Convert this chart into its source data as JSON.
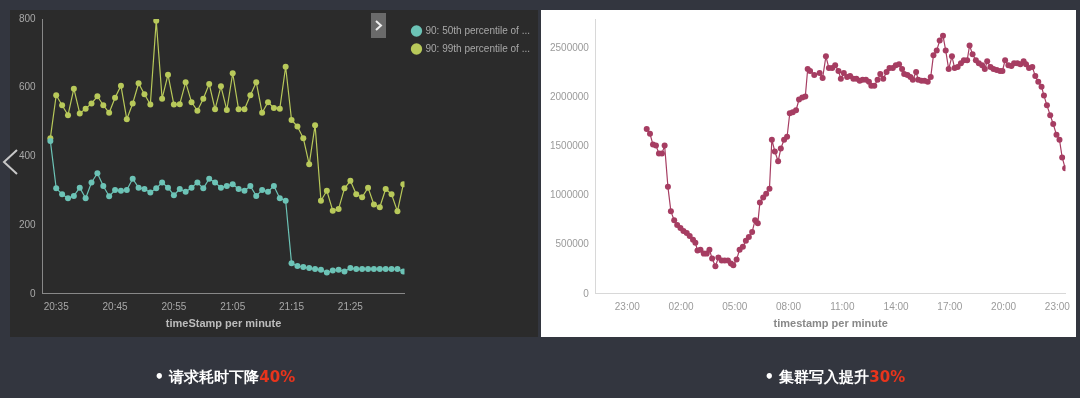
{
  "chart_data": [
    {
      "type": "line",
      "xlabel": "timeStamp per minute",
      "xlim": [
        20.545,
        21.57
      ],
      "xticks": [
        {
          "value": 20.5833,
          "label": "20:35"
        },
        {
          "value": 20.75,
          "label": "20:45"
        },
        {
          "value": 20.9167,
          "label": "20:55"
        },
        {
          "value": 21.0833,
          "label": "21:05"
        },
        {
          "value": 21.25,
          "label": "21:15"
        },
        {
          "value": 21.4167,
          "label": "21:25"
        }
      ],
      "ylim": [
        0,
        800
      ],
      "yticks": [
        0,
        200,
        400,
        600,
        800
      ],
      "grid": false,
      "legend": "top right",
      "marker": "circle",
      "line_style": "solid",
      "annotations": [
        "• 请求耗时下降40%"
      ],
      "x": [
        20.5667,
        20.5833,
        20.6,
        20.6167,
        20.6333,
        20.65,
        20.6667,
        20.6833,
        20.7,
        20.7167,
        20.7333,
        20.75,
        20.7667,
        20.7833,
        20.8,
        20.8167,
        20.8333,
        20.85,
        20.8667,
        20.8833,
        20.9,
        20.9167,
        20.9333,
        20.95,
        20.9667,
        20.9833,
        21.0,
        21.0167,
        21.0333,
        21.05,
        21.0667,
        21.0833,
        21.1,
        21.1167,
        21.1333,
        21.15,
        21.1667,
        21.1833,
        21.2,
        21.2167,
        21.2333,
        21.25,
        21.2667,
        21.2833,
        21.3,
        21.3167,
        21.3333,
        21.35,
        21.3667,
        21.3833,
        21.4,
        21.4167,
        21.4333,
        21.45,
        21.4667,
        21.4833,
        21.5,
        21.5167,
        21.5333,
        21.55,
        21.5667
      ],
      "series": [
        {
          "name": "90: 50th percentile of ...",
          "color": "#6cc3b6",
          "values": [
            445,
            307,
            290,
            278,
            285,
            309,
            278,
            324,
            351,
            314,
            284,
            302,
            300,
            302,
            335,
            309,
            305,
            295,
            307,
            324,
            309,
            287,
            305,
            297,
            309,
            324,
            307,
            335,
            324,
            309,
            314,
            319,
            305,
            300,
            314,
            285,
            302,
            297,
            314,
            278,
            271,
            89,
            81,
            78,
            75,
            72,
            70,
            62,
            68,
            70,
            65,
            75,
            72,
            72,
            72,
            72,
            72,
            72,
            72,
            72,
            65
          ]
        },
        {
          "name": "90: 99th percentile of ...",
          "color": "#b8c95a",
          "values": [
            453,
            578,
            549,
            520,
            597,
            525,
            539,
            554,
            575,
            549,
            527,
            571,
            606,
            508,
            554,
            613,
            581,
            551,
            795,
            568,
            638,
            551,
            552,
            616,
            558,
            533,
            568,
            611,
            537,
            604,
            535,
            642,
            537,
            537,
            578,
            616,
            527,
            558,
            541,
            539,
            661,
            506,
            487,
            453,
            377,
            491,
            271,
            300,
            242,
            247,
            307,
            329,
            290,
            281,
            309,
            260,
            252,
            305,
            290,
            240,
            319
          ]
        }
      ]
    },
    {
      "type": "line",
      "xlabel": "timestamp per minute",
      "xlim": [
        "--01-01T21:15",
        "--01-02T23:27"
      ],
      "xticks": [
        {
          "value": "--01-01T23:00",
          "label": "23:00"
        },
        {
          "value": "--01-02T02:00",
          "label": "02:00"
        },
        {
          "value": "--01-02T05:00",
          "label": "05:00"
        },
        {
          "value": "--01-02T08:00",
          "label": "08:00"
        },
        {
          "value": "--01-02T11:00",
          "label": "11:00"
        },
        {
          "value": "--01-02T14:00",
          "label": "14:00"
        },
        {
          "value": "--01-02T17:00",
          "label": "17:00"
        },
        {
          "value": "--01-02T20:00",
          "label": "20:00"
        },
        {
          "value": "--01-02T23:00",
          "label": "23:00"
        }
      ],
      "ylim": [
        0,
        2800000
      ],
      "yticks": [
        0,
        500000,
        1000000,
        1500000,
        2000000,
        2500000
      ],
      "grid": false,
      "marker": "circle",
      "line_style": "solid",
      "annotations": [
        "• 集群写入提升30%"
      ],
      "x": [
        "--01-02T00:05",
        "--01-02T00:16",
        "--01-02T00:26",
        "--01-02T00:36",
        "--01-02T00:46",
        "--01-02T00:56",
        "--01-02T01:05",
        "--01-02T01:16",
        "--01-02T01:26",
        "--01-02T01:37",
        "--01-02T01:47",
        "--01-02T01:58",
        "--01-02T02:08",
        "--01-02T02:19",
        "--01-02T02:29",
        "--01-02T02:40",
        "--01-02T02:48",
        "--01-02T02:55",
        "--01-02T03:05",
        "--01-02T03:16",
        "--01-02T03:26",
        "--01-02T03:35",
        "--01-02T03:44",
        "--01-02T03:55",
        "--01-02T04:05",
        "--01-02T04:16",
        "--01-02T04:26",
        "--01-02T04:37",
        "--01-02T04:47",
        "--01-02T04:55",
        "--01-02T05:06",
        "--01-02T05:16",
        "--01-02T05:27",
        "--01-02T05:37",
        "--01-02T05:47",
        "--01-02T05:58",
        "--01-02T06:08",
        "--01-02T06:17",
        "--01-02T06:24",
        "--01-02T06:35",
        "--01-02T06:45",
        "--01-02T06:56",
        "--01-02T07:04",
        "--01-02T07:14",
        "--01-02T07:25",
        "--01-02T07:34",
        "--01-02T07:45",
        "--01-02T07:55",
        "--01-02T08:04",
        "--01-02T08:14",
        "--01-02T08:25",
        "--01-02T08:35",
        "--01-02T08:46",
        "--01-02T08:56",
        "--01-02T09:04",
        "--01-02T09:12",
        "--01-02T09:26",
        "--01-02T09:44",
        "--01-02T09:54",
        "--01-02T10:05",
        "--01-02T10:15",
        "--01-02T10:26",
        "--01-02T10:36",
        "--01-02T10:47",
        "--01-02T10:55",
        "--01-02T11:05",
        "--01-02T11:16",
        "--01-02T11:26",
        "--01-02T11:37",
        "--01-02T11:47",
        "--01-02T11:58",
        "--01-02T12:08",
        "--01-02T12:19",
        "--01-02T12:29",
        "--01-02T12:37",
        "--01-02T12:47",
        "--01-02T12:58",
        "--01-02T13:07",
        "--01-02T13:17",
        "--01-02T13:28",
        "--01-02T13:38",
        "--01-02T13:49",
        "--01-02T13:59",
        "--01-02T14:10",
        "--01-02T14:20",
        "--01-02T14:27",
        "--01-02T14:38",
        "--01-02T14:48",
        "--01-02T14:56",
        "--01-02T15:07",
        "--01-02T15:14",
        "--01-02T15:25",
        "--01-02T15:35",
        "--01-02T15:46",
        "--01-02T15:56",
        "--01-02T16:05",
        "--01-02T16:16",
        "--01-02T16:26",
        "--01-02T16:37",
        "--01-02T16:46",
        "--01-02T16:56",
        "--01-02T17:07",
        "--01-02T17:16",
        "--01-02T17:26",
        "--01-02T17:37",
        "--01-02T17:47",
        "--01-02T17:58",
        "--01-02T18:06",
        "--01-02T18:16",
        "--01-02T18:27",
        "--01-02T18:37",
        "--01-02T18:48",
        "--01-02T18:57",
        "--01-02T19:05",
        "--01-02T19:16",
        "--01-02T19:26",
        "--01-02T19:37",
        "--01-02T19:48",
        "--01-02T19:56",
        "--01-02T20:05",
        "--01-02T20:16",
        "--01-02T20:26",
        "--01-02T20:35",
        "--01-02T20:46",
        "--01-02T20:56",
        "--01-02T21:07",
        "--01-02T21:15",
        "--01-02T21:25",
        "--01-02T21:36",
        "--01-02T21:46",
        "--01-02T21:56",
        "--01-02T22:07",
        "--01-02T22:15",
        "--01-02T22:25",
        "--01-02T22:36",
        "--01-02T22:46",
        "--01-02T22:57",
        "--01-02T23:07",
        "--01-02T23:16",
        "--01-02T23:26"
      ],
      "series": [
        {
          "color": "#a63d62",
          "values": [
            1680000,
            1630000,
            1520000,
            1510000,
            1430000,
            1430000,
            1510000,
            1090000,
            840000,
            750000,
            700000,
            670000,
            640000,
            620000,
            590000,
            550000,
            520000,
            440000,
            450000,
            410000,
            410000,
            450000,
            360000,
            280000,
            370000,
            340000,
            340000,
            340000,
            310000,
            290000,
            350000,
            450000,
            480000,
            540000,
            580000,
            630000,
            750000,
            720000,
            930000,
            980000,
            1020000,
            1070000,
            1570000,
            1450000,
            1350000,
            1480000,
            1570000,
            1600000,
            1840000,
            1850000,
            1870000,
            1980000,
            2000000,
            2010000,
            2290000,
            2270000,
            2230000,
            2250000,
            2200000,
            2420000,
            2300000,
            2300000,
            2330000,
            2270000,
            2190000,
            2250000,
            2210000,
            2220000,
            2190000,
            2190000,
            2170000,
            2180000,
            2180000,
            2160000,
            2120000,
            2120000,
            2180000,
            2240000,
            2190000,
            2260000,
            2300000,
            2300000,
            2330000,
            2340000,
            2290000,
            2240000,
            2230000,
            2210000,
            2180000,
            2260000,
            2180000,
            2170000,
            2170000,
            2160000,
            2210000,
            2430000,
            2480000,
            2580000,
            2630000,
            2480000,
            2290000,
            2420000,
            2300000,
            2310000,
            2350000,
            2380000,
            2380000,
            2530000,
            2440000,
            2380000,
            2350000,
            2330000,
            2290000,
            2370000,
            2310000,
            2290000,
            2280000,
            2270000,
            2270000,
            2380000,
            2330000,
            2320000,
            2350000,
            2350000,
            2340000,
            2370000,
            2340000,
            2300000,
            2310000,
            2220000,
            2160000,
            2110000,
            2020000,
            1920000,
            1820000,
            1730000,
            1620000,
            1570000,
            1390000,
            1280000
          ]
        }
      ]
    }
  ]
}
